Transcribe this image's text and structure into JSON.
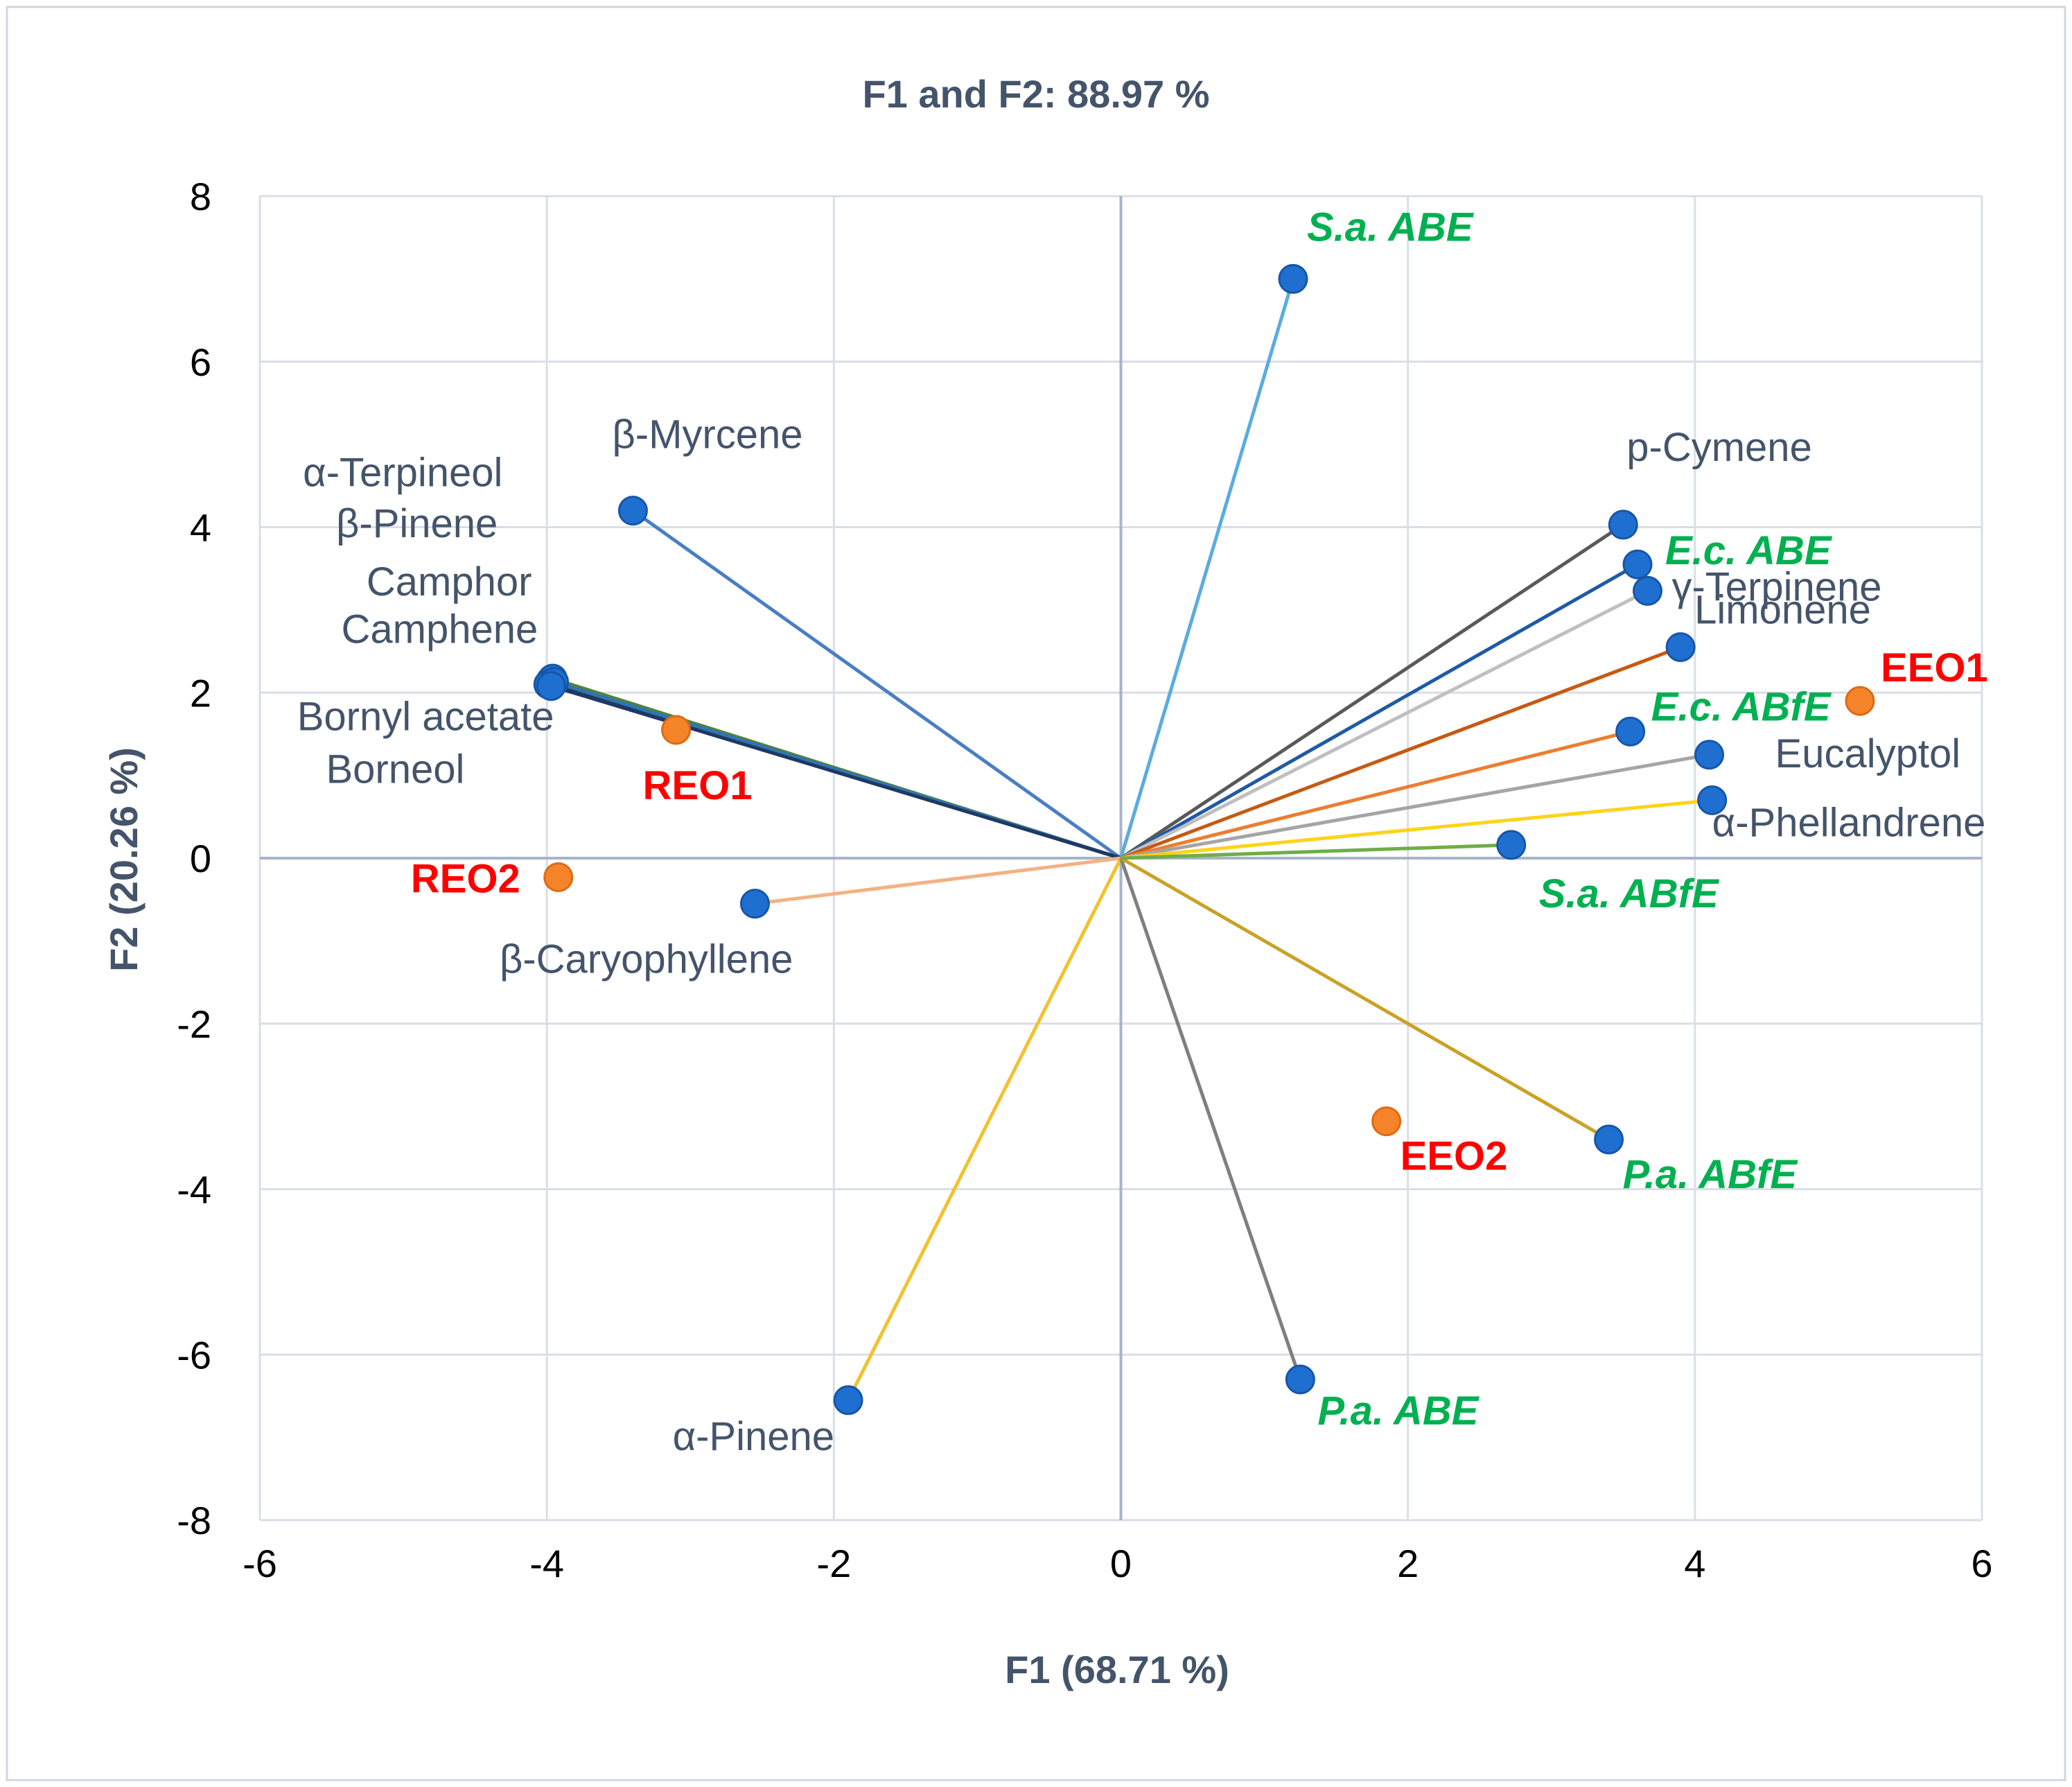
{
  "chart_data": {
    "type": "scatter",
    "title": "F1 and F2: 88.97 %",
    "xlabel": "F1 (68.71 %)",
    "ylabel": "F2 (20.26 %)",
    "xlim": [
      -6,
      6
    ],
    "ylim": [
      -8,
      8
    ],
    "xticks": [
      "-6",
      "-4",
      "-2",
      "0",
      "2",
      "4",
      "6"
    ],
    "yticks": [
      "8",
      "6",
      "4",
      "2",
      "0",
      "-2",
      "-4",
      "-6",
      "-8"
    ],
    "grid": true,
    "colors": {
      "variable_point": "#1f6fd1",
      "observation_point": "#f5832a",
      "variable_label": "#44546a",
      "extract_label": "#00b050",
      "observation_label": "#ff0000",
      "axis_line": "#a6b4c8",
      "grid": "#d9dee8"
    },
    "variables": [
      {
        "name": "S.a. ABE",
        "x": 1.2,
        "y": 7.0,
        "color": "#5aacdf",
        "kind": "extract"
      },
      {
        "name": "β-Myrcene",
        "x": -3.4,
        "y": 4.2,
        "color": "#4a7fc1",
        "kind": "compound"
      },
      {
        "name": "α-Terpineol",
        "x": -3.97,
        "y": 2.15,
        "color": "#1f4e79",
        "kind": "compound"
      },
      {
        "name": "β-Pinene",
        "x": -3.98,
        "y": 2.12,
        "color": "#375623",
        "kind": "compound"
      },
      {
        "name": "Camphor",
        "x": -3.96,
        "y": 2.17,
        "color": "#548235",
        "kind": "compound"
      },
      {
        "name": "Camphene",
        "x": -3.99,
        "y": 2.1,
        "color": "#203864",
        "kind": "compound"
      },
      {
        "name": "Bornyl acetate",
        "x": -3.95,
        "y": 2.13,
        "color": "#2e75b6",
        "kind": "compound"
      },
      {
        "name": "Borneol",
        "x": -3.97,
        "y": 2.08,
        "color": "#1f3864",
        "kind": "compound"
      },
      {
        "name": "β-Caryophyllene",
        "x": -2.55,
        "y": -0.55,
        "color": "#f4b183",
        "kind": "compound"
      },
      {
        "name": "α-Pinene",
        "x": -1.9,
        "y": -6.55,
        "color": "#f2c12e",
        "kind": "compound"
      },
      {
        "name": "P.a. ABE",
        "x": 1.25,
        "y": -6.3,
        "color": "#7f7f7f",
        "kind": "extract"
      },
      {
        "name": "P.a. ABfE",
        "x": 3.4,
        "y": -3.4,
        "color": "#c9a227",
        "kind": "extract"
      },
      {
        "name": "p-Cymene",
        "x": 3.5,
        "y": 4.03,
        "color": "#595959",
        "kind": "compound"
      },
      {
        "name": "E.c. ABE",
        "x": 3.6,
        "y": 3.55,
        "color": "#1f5aa6",
        "kind": "extract"
      },
      {
        "name": "γ-Terpinene",
        "x": 3.67,
        "y": 3.23,
        "color": "#bfbfbf",
        "kind": "compound"
      },
      {
        "name": "Limonene",
        "x": 3.9,
        "y": 2.55,
        "color": "#c55a11",
        "kind": "compound"
      },
      {
        "name": "E.c. ABfE",
        "x": 3.55,
        "y": 1.53,
        "color": "#ed7d31",
        "kind": "extract"
      },
      {
        "name": "Eucalyptol",
        "x": 4.1,
        "y": 1.25,
        "color": "#a5a5a5",
        "kind": "compound"
      },
      {
        "name": "α-Phellandrene",
        "x": 4.12,
        "y": 0.7,
        "color": "#ffd319",
        "kind": "compound"
      },
      {
        "name": "S.a. ABfE",
        "x": 2.72,
        "y": 0.16,
        "color": "#70ad47",
        "kind": "extract"
      }
    ],
    "observations": [
      {
        "name": "REO1",
        "x": -3.1,
        "y": 1.55
      },
      {
        "name": "REO2",
        "x": -3.92,
        "y": -0.23
      },
      {
        "name": "EEO1",
        "x": 5.15,
        "y": 1.9
      },
      {
        "name": "EEO2",
        "x": 1.85,
        "y": -3.18
      }
    ]
  }
}
